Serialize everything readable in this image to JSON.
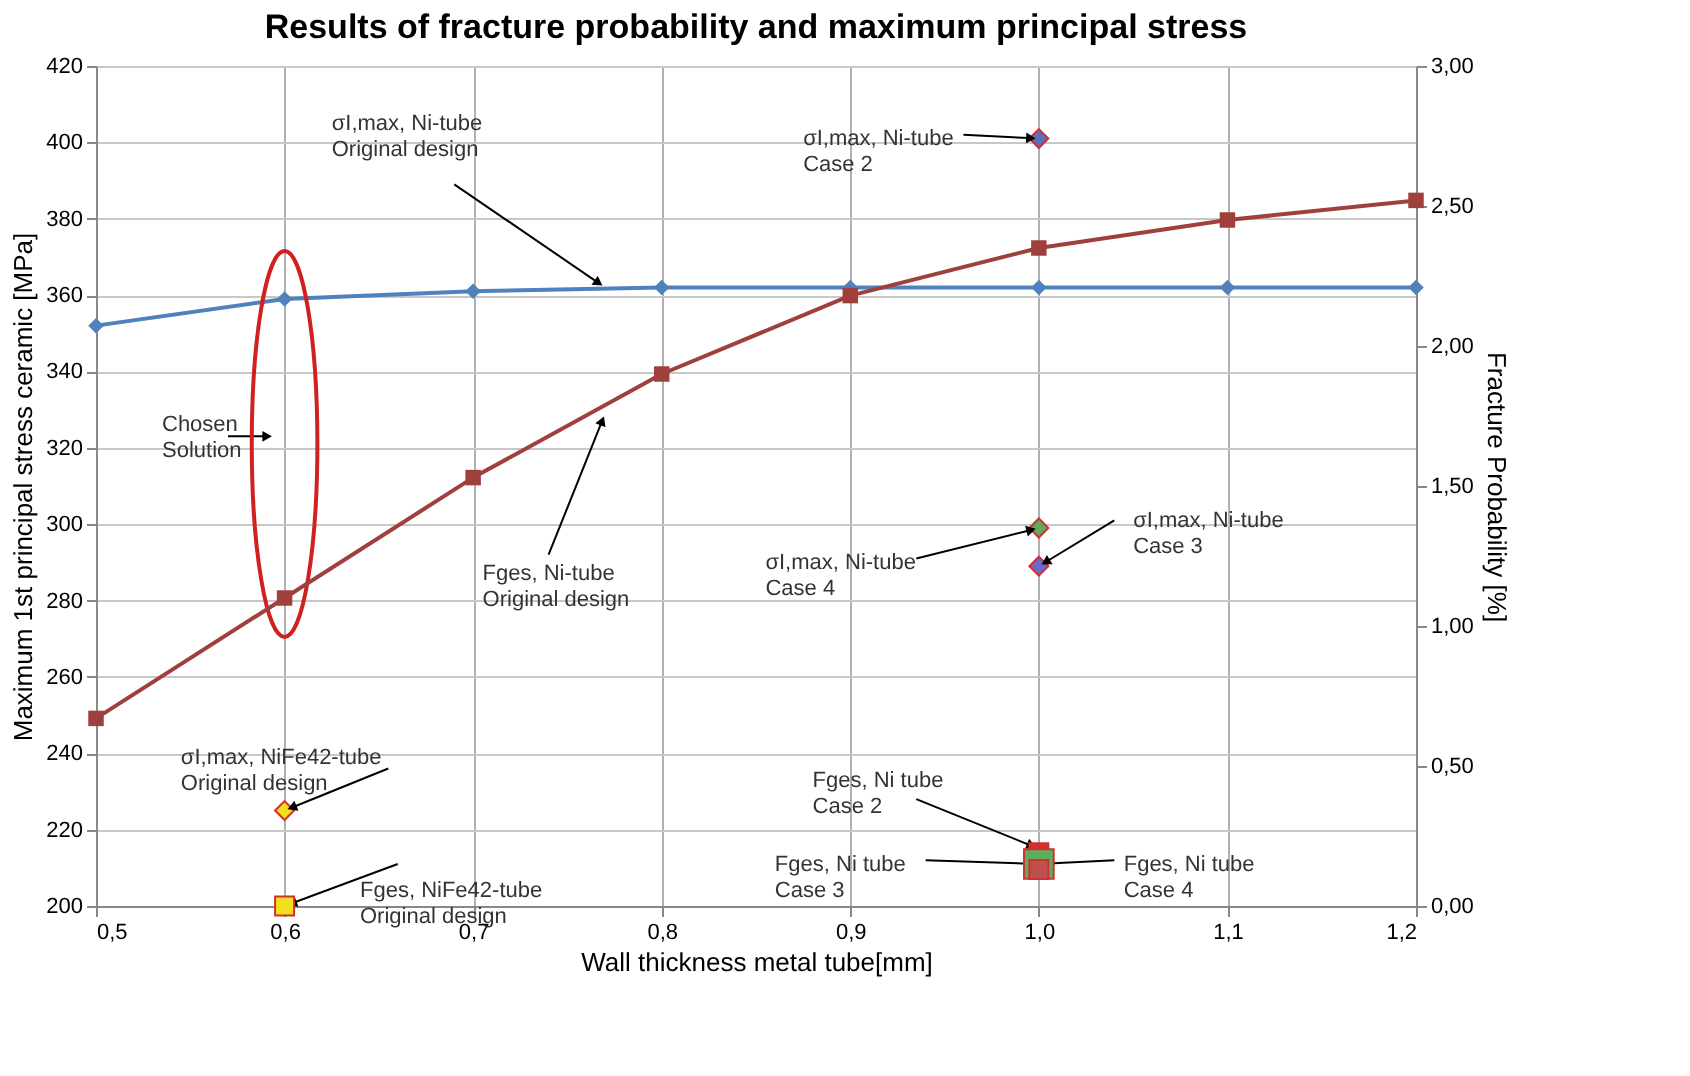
{
  "chart_data": {
    "type": "line",
    "title": "Results of fracture probability and maximum principal stress",
    "xlabel": "Wall thickness metal tube[mm]",
    "ylabel": "Maximum 1st  principal stress ceramic [MPa]",
    "y2label": "Fracture Probability [%]",
    "xlim": [
      0.5,
      1.2
    ],
    "xticks": [
      {
        "value": 0.5,
        "label": "0,5"
      },
      {
        "value": 0.6,
        "label": "0,6"
      },
      {
        "value": 0.7,
        "label": "0,7"
      },
      {
        "value": 0.8,
        "label": "0,8"
      },
      {
        "value": 0.9,
        "label": "0,9"
      },
      {
        "value": 1.0,
        "label": "1,0"
      },
      {
        "value": 1.1,
        "label": "1,1"
      },
      {
        "value": 1.2,
        "label": "1,2"
      }
    ],
    "ylim": [
      200,
      420
    ],
    "yticks": [
      200,
      220,
      240,
      260,
      280,
      300,
      320,
      340,
      360,
      380,
      400,
      420
    ],
    "y2lim": [
      0,
      3
    ],
    "y2ticks": [
      {
        "value": 0,
        "label": "0,00"
      },
      {
        "value": 0.5,
        "label": "0,50"
      },
      {
        "value": 1.0,
        "label": "1,00"
      },
      {
        "value": 1.5,
        "label": "1,50"
      },
      {
        "value": 2.0,
        "label": "2,00"
      },
      {
        "value": 2.5,
        "label": "2,50"
      },
      {
        "value": 3.0,
        "label": "3,00"
      }
    ],
    "grid": true,
    "legend": false,
    "series": [
      {
        "type": "line",
        "marker": "diamond",
        "color": "#4f81bd",
        "x": [
          0.5,
          0.6,
          0.7,
          0.8,
          0.9,
          1.0,
          1.1,
          1.2
        ],
        "values": [
          352,
          359,
          361,
          362,
          362,
          362,
          362,
          362
        ]
      },
      {
        "type": "line",
        "marker": "square",
        "axis": "y2",
        "color": "#a0403d",
        "x": [
          0.5,
          0.6,
          0.7,
          0.8,
          0.9,
          1.0,
          1.1,
          1.2
        ],
        "values": [
          0.67,
          1.1,
          1.53,
          1.9,
          2.18,
          2.35,
          2.45,
          2.52
        ]
      },
      {
        "type": "scatter",
        "marker": "diamond",
        "color": "#5b6fc0",
        "x": [
          1.0
        ],
        "values": [
          401
        ]
      },
      {
        "type": "scatter",
        "marker": "diamond",
        "color": "#6a6acd",
        "x": [
          1.0
        ],
        "values": [
          289
        ]
      },
      {
        "type": "scatter",
        "marker": "diamond",
        "color": "#5cae5c",
        "x": [
          1.0
        ],
        "values": [
          299
        ]
      },
      {
        "type": "scatter",
        "marker": "diamond",
        "color": "#f0e020",
        "x": [
          0.6
        ],
        "values": [
          225
        ]
      },
      {
        "type": "scatter",
        "marker": "square",
        "axis": "y2",
        "color": "#f0e020",
        "x": [
          0.6
        ],
        "values": [
          0.0
        ]
      },
      {
        "type": "scatter",
        "marker": "square",
        "axis": "y2",
        "color": "#d03030",
        "x": [
          1.0
        ],
        "values": [
          0.19
        ]
      },
      {
        "type": "scatter",
        "marker": "square",
        "axis": "y2",
        "color": "#5cae5c",
        "x": [
          1.0
        ],
        "values": [
          0.15
        ]
      },
      {
        "type": "scatter",
        "marker": "square",
        "axis": "y2",
        "color": "#c05050",
        "x": [
          1.0
        ],
        "values": [
          0.13
        ]
      }
    ],
    "annotations": [
      {
        "text": "σI,max, Ni-tube\nOriginal design",
        "x": 0.77,
        "y": 362
      },
      {
        "text": "σI,max, Ni-tube\nCase 2",
        "x": 1.0,
        "y": 401
      },
      "Chosen\nSolution",
      {
        "text": "Fges, Ni-tube\nOriginal design",
        "x": 0.77,
        "y": 329
      },
      {
        "text": "σI,max, NiFe42-tube\nOriginal design",
        "x": 0.6,
        "y": 225
      },
      {
        "text": "Fges, NiFe42-tube\nOriginal design",
        "x": 0.6,
        "y": 200
      },
      {
        "text": "σI,max, Ni-tube\nCase 3",
        "x": 1.0,
        "y": 289
      },
      {
        "text": "σI,max, Ni-tube\nCase 4",
        "x": 1.0,
        "y": 299
      },
      {
        "text": "Fges, Ni tube\nCase 2",
        "x": 1.0,
        "y": 215
      },
      {
        "text": "Fges, Ni tube\nCase 3",
        "x": 1.0,
        "y": 211
      },
      {
        "text": "Fges, Ni tube\nCase 4",
        "x": 1.0,
        "y": 211
      }
    ]
  }
}
